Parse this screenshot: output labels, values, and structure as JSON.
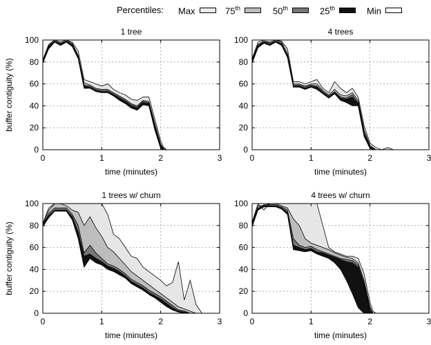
{
  "legend": {
    "title": "Percentiles:",
    "items": [
      {
        "label": "Max",
        "sup": "",
        "color": "#ececec"
      },
      {
        "label": "75",
        "sup": "th",
        "color": "#bdbdbd"
      },
      {
        "label": "50",
        "sup": "th",
        "color": "#777777"
      },
      {
        "label": "25",
        "sup": "th",
        "color": "#111111"
      },
      {
        "label": "Min",
        "sup": "",
        "color": "#ffffff"
      }
    ]
  },
  "colors": {
    "max_band": "#e6e6e6",
    "p75_band": "#bdbdbd",
    "p50_band": "#777777",
    "p25_band": "#111111",
    "outline": "#000000"
  },
  "chart_data": [
    {
      "type": "area",
      "title": "1 tree",
      "xlabel": "time (minutes)",
      "ylabel": "buffer contiguity (%)",
      "xlim": [
        0,
        3
      ],
      "ylim": [
        0,
        100
      ],
      "xticks": [
        "0",
        "1",
        "2",
        "3"
      ],
      "yticks": [
        "0",
        "20",
        "40",
        "60",
        "80",
        "100"
      ],
      "grid": "dashed",
      "x": [
        0,
        0.1,
        0.2,
        0.3,
        0.4,
        0.5,
        0.6,
        0.7,
        0.8,
        0.9,
        1.0,
        1.1,
        1.2,
        1.3,
        1.4,
        1.5,
        1.6,
        1.7,
        1.8,
        1.9,
        2.0,
        2.05,
        2.1,
        2.2
      ],
      "series": [
        {
          "name": "Max",
          "values": [
            82,
            96,
            100,
            100,
            100,
            98,
            90,
            64,
            62,
            60,
            58,
            60,
            55,
            52,
            50,
            46,
            45,
            48,
            48,
            28,
            8,
            2,
            0,
            0
          ]
        },
        {
          "name": "75th",
          "values": [
            81,
            95,
            100,
            98,
            100,
            97,
            86,
            61,
            59,
            56,
            55,
            55,
            52,
            49,
            46,
            42,
            40,
            45,
            44,
            24,
            5,
            1,
            0,
            0
          ]
        },
        {
          "name": "50th",
          "values": [
            80,
            94,
            99,
            97,
            99,
            96,
            85,
            59,
            58,
            55,
            54,
            54,
            51,
            48,
            45,
            41,
            39,
            44,
            43,
            22,
            4,
            0,
            0,
            0
          ]
        },
        {
          "name": "25th",
          "values": [
            80,
            93,
            99,
            96,
            99,
            95,
            84,
            58,
            57,
            54,
            53,
            53,
            50,
            47,
            44,
            40,
            38,
            43,
            42,
            20,
            3,
            0,
            0,
            0
          ]
        },
        {
          "name": "Min",
          "values": [
            79,
            92,
            98,
            95,
            98,
            94,
            83,
            56,
            56,
            53,
            52,
            52,
            49,
            45,
            42,
            38,
            36,
            41,
            40,
            18,
            1,
            0,
            0,
            0
          ]
        }
      ]
    },
    {
      "type": "area",
      "title": "4 trees",
      "xlabel": "time (minutes)",
      "ylabel": "",
      "xlim": [
        0,
        3
      ],
      "ylim": [
        0,
        100
      ],
      "xticks": [
        "0",
        "1",
        "2",
        "3"
      ],
      "yticks": [
        "0",
        "20",
        "40",
        "60",
        "80",
        "100"
      ],
      "grid": "dashed",
      "x": [
        0,
        0.1,
        0.2,
        0.3,
        0.4,
        0.5,
        0.6,
        0.7,
        0.8,
        0.9,
        1.0,
        1.1,
        1.2,
        1.3,
        1.4,
        1.5,
        1.6,
        1.7,
        1.8,
        1.9,
        2.0,
        2.1,
        2.2,
        2.3,
        2.4
      ],
      "series": [
        {
          "name": "Max",
          "values": [
            83,
            98,
            100,
            100,
            100,
            99,
            92,
            62,
            62,
            60,
            62,
            64,
            56,
            52,
            62,
            56,
            52,
            56,
            48,
            22,
            6,
            2,
            0,
            2,
            0
          ]
        },
        {
          "name": "75th",
          "values": [
            82,
            96,
            99,
            98,
            100,
            98,
            88,
            60,
            60,
            58,
            60,
            60,
            54,
            50,
            55,
            50,
            49,
            52,
            45,
            18,
            4,
            0,
            0,
            0,
            0
          ]
        },
        {
          "name": "50th",
          "values": [
            81,
            95,
            99,
            97,
            99,
            97,
            86,
            59,
            59,
            57,
            59,
            58,
            53,
            49,
            53,
            48,
            47,
            50,
            43,
            16,
            3,
            0,
            0,
            0,
            0
          ]
        },
        {
          "name": "25th",
          "values": [
            80,
            94,
            98,
            96,
            99,
            96,
            85,
            58,
            58,
            56,
            58,
            57,
            52,
            48,
            52,
            47,
            46,
            48,
            42,
            14,
            2,
            0,
            0,
            0,
            0
          ]
        },
        {
          "name": "Min",
          "values": [
            79,
            93,
            97,
            95,
            98,
            95,
            84,
            57,
            57,
            55,
            57,
            55,
            51,
            47,
            51,
            45,
            43,
            40,
            40,
            12,
            1,
            0,
            0,
            0,
            0
          ]
        }
      ]
    },
    {
      "type": "area",
      "title": "1 trees w/ churn",
      "xlabel": "time (minutes)",
      "ylabel": "buffer contiguity (%)",
      "xlim": [
        0,
        3
      ],
      "ylim": [
        0,
        100
      ],
      "xticks": [
        "0",
        "1",
        "2",
        "3"
      ],
      "yticks": [
        "0",
        "20",
        "40",
        "60",
        "80",
        "100"
      ],
      "grid": "dashed",
      "x": [
        0,
        0.1,
        0.2,
        0.3,
        0.4,
        0.5,
        0.6,
        0.7,
        0.8,
        0.9,
        1.0,
        1.1,
        1.2,
        1.3,
        1.4,
        1.5,
        1.6,
        1.7,
        1.8,
        1.9,
        2.0,
        2.1,
        2.2,
        2.3,
        2.4,
        2.5,
        2.6,
        2.7
      ],
      "series": [
        {
          "name": "Max",
          "values": [
            82,
            96,
            100,
            100,
            100,
            100,
            100,
            100,
            100,
            100,
            100,
            90,
            72,
            68,
            60,
            52,
            50,
            42,
            38,
            34,
            30,
            25,
            28,
            47,
            12,
            30,
            8,
            0
          ]
        },
        {
          "name": "75th",
          "values": [
            81,
            94,
            100,
            100,
            98,
            94,
            92,
            80,
            88,
            78,
            70,
            60,
            56,
            50,
            44,
            38,
            34,
            30,
            26,
            22,
            18,
            14,
            10,
            6,
            4,
            2,
            0,
            0
          ]
        },
        {
          "name": "50th",
          "values": [
            80,
            91,
            96,
            96,
            96,
            90,
            80,
            55,
            62,
            55,
            50,
            45,
            43,
            40,
            36,
            31,
            28,
            25,
            21,
            18,
            15,
            11,
            7,
            3,
            2,
            0,
            0,
            0
          ]
        },
        {
          "name": "25th",
          "values": [
            80,
            89,
            94,
            94,
            94,
            88,
            74,
            52,
            54,
            50,
            47,
            43,
            41,
            38,
            34,
            29,
            26,
            23,
            19,
            16,
            13,
            9,
            5,
            2,
            1,
            0,
            0,
            0
          ]
        },
        {
          "name": "Min",
          "values": [
            79,
            87,
            93,
            93,
            93,
            85,
            68,
            42,
            50,
            46,
            44,
            40,
            38,
            35,
            32,
            27,
            24,
            21,
            17,
            14,
            10,
            6,
            3,
            1,
            0,
            0,
            0,
            0
          ]
        }
      ]
    },
    {
      "type": "area",
      "title": "4 trees w/ churn",
      "xlabel": "time (minutes)",
      "ylabel": "",
      "xlim": [
        0,
        3
      ],
      "ylim": [
        0,
        100
      ],
      "xticks": [
        "0",
        "1",
        "2",
        "3"
      ],
      "yticks": [
        "0",
        "20",
        "40",
        "60",
        "80",
        "100"
      ],
      "grid": "dashed",
      "x": [
        0,
        0.1,
        0.2,
        0.3,
        0.4,
        0.5,
        0.6,
        0.7,
        0.8,
        0.9,
        1.0,
        1.1,
        1.2,
        1.3,
        1.4,
        1.5,
        1.6,
        1.7,
        1.8,
        1.9,
        2.0,
        2.05,
        2.1
      ],
      "series": [
        {
          "name": "Max",
          "values": [
            83,
            100,
            94,
            100,
            100,
            100,
            100,
            100,
            100,
            100,
            100,
            100,
            80,
            60,
            56,
            54,
            52,
            52,
            50,
            36,
            10,
            2,
            0
          ]
        },
        {
          "name": "75th",
          "values": [
            82,
            98,
            98,
            100,
            100,
            98,
            96,
            86,
            80,
            68,
            64,
            62,
            60,
            58,
            55,
            53,
            51,
            50,
            46,
            30,
            6,
            0,
            0
          ]
        },
        {
          "name": "50th",
          "values": [
            81,
            96,
            99,
            99,
            99,
            97,
            94,
            68,
            62,
            60,
            61,
            58,
            56,
            54,
            52,
            50,
            49,
            48,
            44,
            28,
            4,
            0,
            0
          ]
        },
        {
          "name": "25th",
          "values": [
            80,
            95,
            98,
            98,
            98,
            96,
            92,
            62,
            60,
            58,
            59,
            56,
            55,
            53,
            51,
            49,
            47,
            46,
            42,
            26,
            2,
            0,
            0
          ]
        },
        {
          "name": "Min",
          "values": [
            79,
            94,
            97,
            97,
            97,
            95,
            90,
            58,
            57,
            56,
            57,
            54,
            52,
            50,
            46,
            40,
            30,
            18,
            5,
            0,
            0,
            0,
            0
          ]
        }
      ]
    }
  ]
}
